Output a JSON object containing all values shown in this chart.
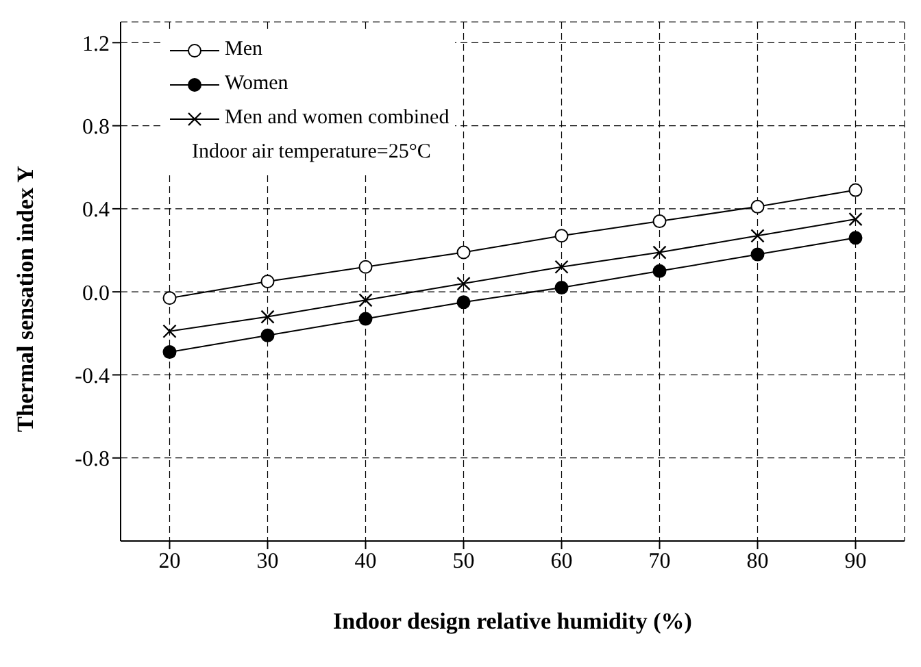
{
  "chart_data": {
    "type": "line",
    "xlabel": "Indoor design relative humidity (%)",
    "ylabel": "Thermal sensation index Y",
    "x": [
      20,
      30,
      40,
      50,
      60,
      70,
      80,
      90
    ],
    "series": [
      {
        "name": "Men",
        "color": "#000000",
        "marker": "circle",
        "values": [
          -0.03,
          0.05,
          0.12,
          0.19,
          0.27,
          0.34,
          0.41,
          0.49
        ]
      },
      {
        "name": "Women",
        "color": "#000000",
        "marker": "circle",
        "values": [
          -0.29,
          -0.21,
          -0.13,
          -0.05,
          0.02,
          0.1,
          0.18,
          0.26
        ]
      },
      {
        "name": "Men and women combined",
        "color": "#000000",
        "marker": "cross",
        "values": [
          -0.19,
          -0.12,
          -0.04,
          0.04,
          0.12,
          0.19,
          0.27,
          0.35
        ]
      }
    ],
    "xlim": [
      15,
      95
    ],
    "xticks": [
      20,
      30,
      40,
      50,
      60,
      70,
      80,
      90
    ],
    "ylim": [
      -1.2,
      1.3
    ],
    "yticks": [
      -0.8,
      -0.4,
      {
        "value": 0,
        "label": "0.0"
      },
      0.4,
      0.8,
      1.2
    ],
    "grid": true,
    "legend": "top left",
    "line_style": "solid",
    "annotations": [
      "Indoor air temperature=25°C"
    ]
  }
}
